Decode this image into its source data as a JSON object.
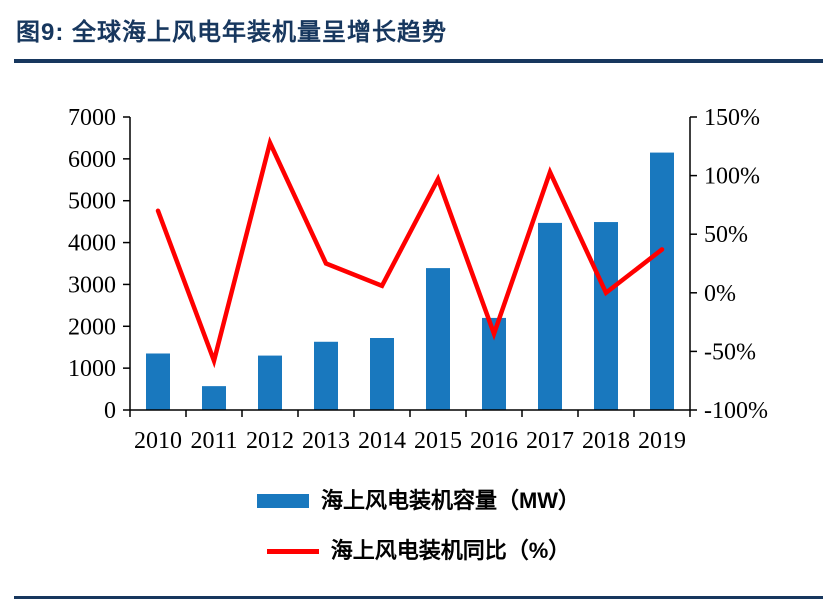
{
  "header": {
    "title": "图9:  全球海上风电年装机量呈增长趋势",
    "accent_color": "#17375E"
  },
  "chart_data": {
    "type": "combo",
    "title": "全球海上风电年装机量呈增长趋势",
    "categories": [
      "2010",
      "2011",
      "2012",
      "2013",
      "2014",
      "2015",
      "2016",
      "2017",
      "2018",
      "2019"
    ],
    "series": [
      {
        "name": "海上风电装机容量（MW）",
        "type": "bar",
        "axis": "left",
        "color": "#1978BE",
        "values": [
          1350,
          570,
          1300,
          1630,
          1720,
          3390,
          2200,
          4470,
          4490,
          6150
        ]
      },
      {
        "name": "海上风电装机同比（%）",
        "type": "line",
        "axis": "right",
        "color": "#FF0000",
        "values": [
          70,
          -58,
          128,
          25,
          6,
          97,
          -35,
          103,
          0,
          37
        ]
      }
    ],
    "left_axis": {
      "min": 0,
      "max": 7000,
      "step": 1000,
      "tick_labels": [
        "0",
        "1000",
        "2000",
        "3000",
        "4000",
        "5000",
        "6000",
        "7000"
      ]
    },
    "right_axis": {
      "min": -100,
      "max": 150,
      "step": 50,
      "tick_labels": [
        "-100%",
        "-50%",
        "0%",
        "50%",
        "100%",
        "150%"
      ]
    },
    "grid": false,
    "legend_position": "bottom"
  },
  "legend": {
    "bar_label": "海上风电装机容量（MW）",
    "line_label": "海上风电装机同比（%）"
  }
}
